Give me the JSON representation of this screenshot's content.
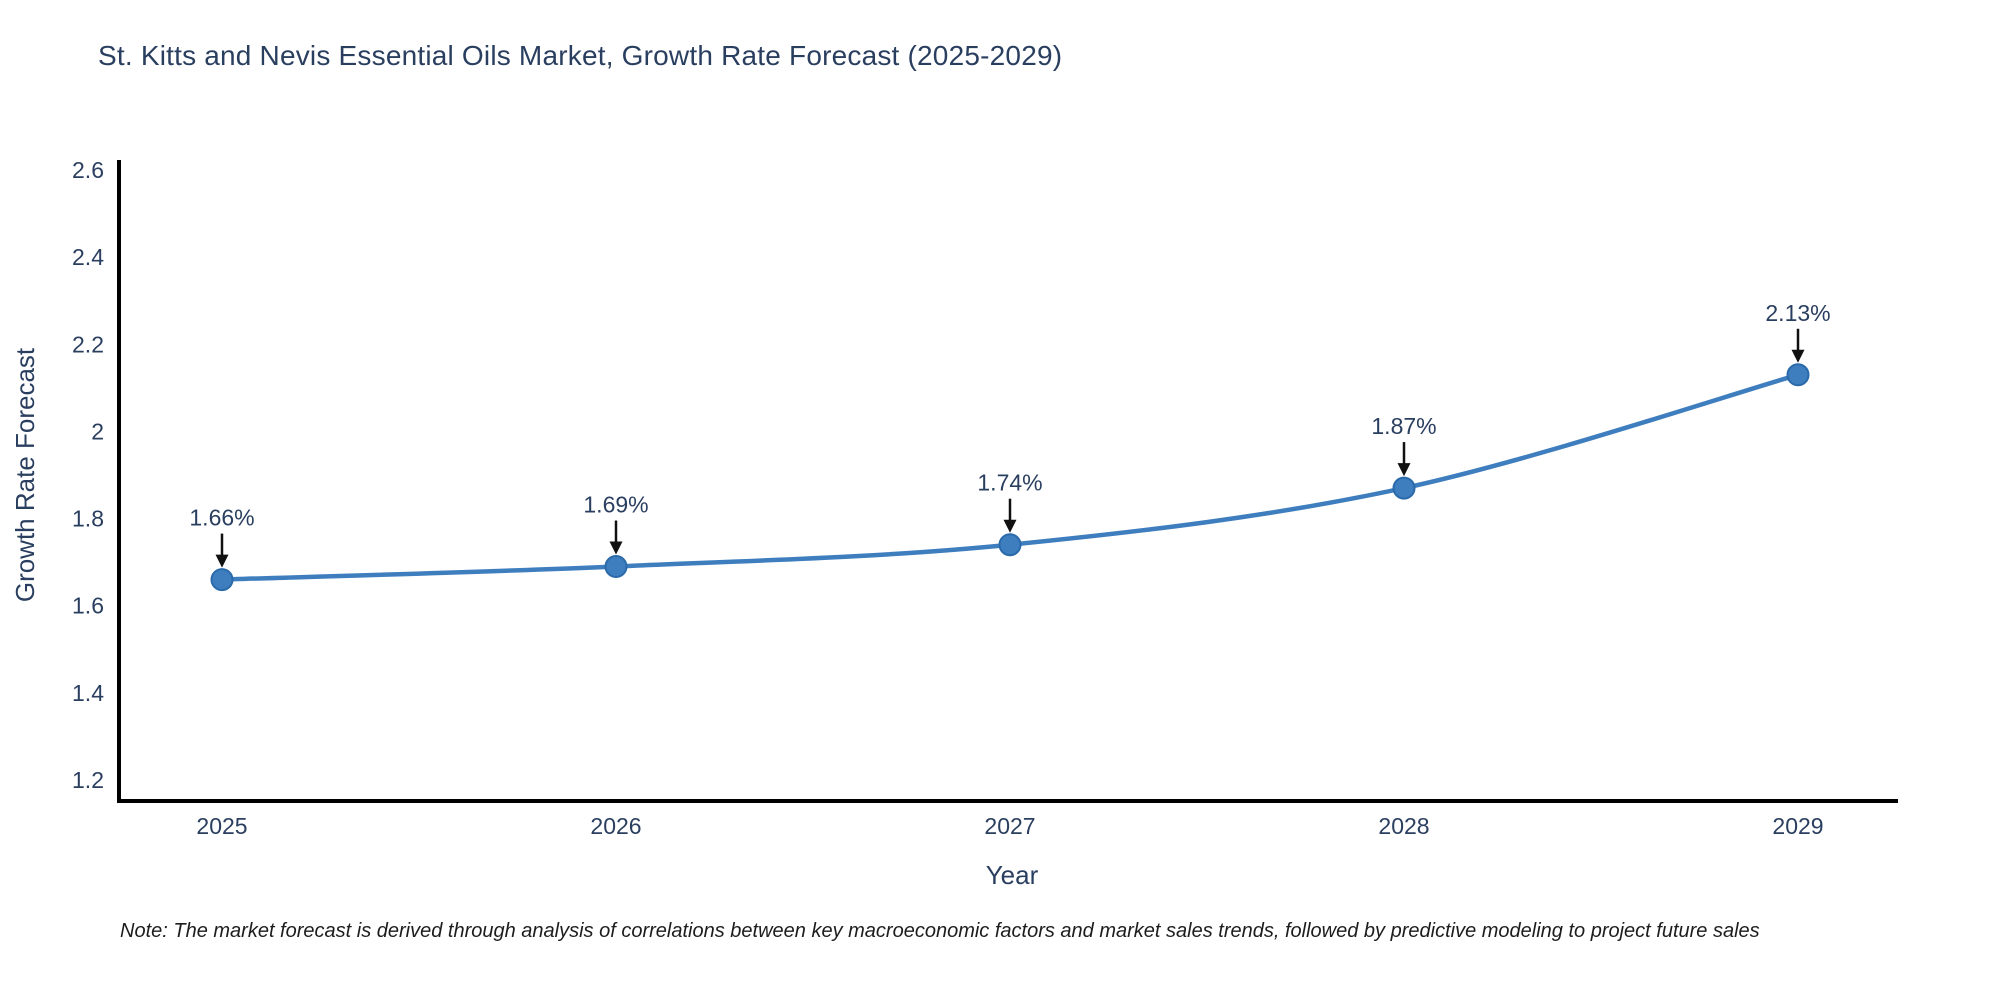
{
  "title": "St. Kitts and Nevis Essential Oils Market, Growth Rate Forecast (2025-2029)",
  "note": "Note: The market forecast is derived through analysis of correlations between key macroeconomic factors and market sales trends, followed by predictive modeling to project future sales",
  "chart_data": {
    "type": "line",
    "title": "St. Kitts and Nevis Essential Oils Market, Growth Rate Forecast (2025-2029)",
    "xlabel": "Year",
    "ylabel": "Growth Rate Forecast",
    "x": [
      2025,
      2026,
      2027,
      2028,
      2029
    ],
    "values": [
      1.66,
      1.69,
      1.74,
      1.87,
      2.13
    ],
    "point_labels": [
      "1.66%",
      "1.69%",
      "1.74%",
      "1.87%",
      "2.13%"
    ],
    "xtick_labels": [
      "2025",
      "2026",
      "2027",
      "2028",
      "2029"
    ],
    "yticks": [
      1.2,
      1.4,
      1.6,
      1.8,
      2.0,
      2.2,
      2.4,
      2.6
    ],
    "ytick_labels": [
      "1.2",
      "1.4",
      "1.6",
      "1.8",
      "2",
      "2.2",
      "2.4",
      "2.6"
    ],
    "ylim": [
      1.1,
      2.67
    ],
    "grid": false,
    "legend_position": "none",
    "line_color": "#3E7EBE",
    "marker_color": "#3E7EBE",
    "marker_edge_color": "#2A6AAB",
    "arrow_color": "#111111",
    "axis_color": "#000000",
    "tick_label_color": "#2a3f5f",
    "title_color": "#2a3f5f"
  }
}
